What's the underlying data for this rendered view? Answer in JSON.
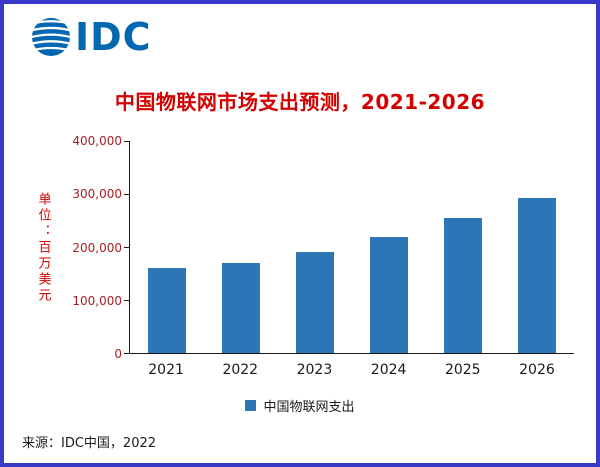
{
  "logo": {
    "text": "IDC"
  },
  "chart_data": {
    "type": "bar",
    "title": "中国物联网市场支出预测，2021-2026",
    "ylabel": "单位：百万美元",
    "xlabel": "",
    "categories": [
      "2021",
      "2022",
      "2023",
      "2024",
      "2025",
      "2026"
    ],
    "values": [
      160000,
      170000,
      190000,
      218000,
      255000,
      293000
    ],
    "series": [
      {
        "name": "中国物联网支出",
        "values": [
          160000,
          170000,
          190000,
          218000,
          255000,
          293000
        ]
      }
    ],
    "ylim": [
      0,
      400000
    ],
    "yticks": [
      0,
      100000,
      200000,
      300000,
      400000
    ],
    "ytick_labels": [
      "0",
      "100,000",
      "200,000",
      "300,000",
      "400,000"
    ],
    "grid": false,
    "legend_position": "bottom",
    "legend": [
      {
        "label": "中国物联网支出",
        "color": "#2E75B6"
      }
    ],
    "bar_color": "#2E75B6"
  },
  "source": "来源：IDC中国，2022",
  "colors": {
    "border": "#3A3AC8",
    "title_red": "#D40000",
    "axis_red": "#A52020",
    "bar": "#2E75B6",
    "logo_blue": "#0067B1"
  }
}
